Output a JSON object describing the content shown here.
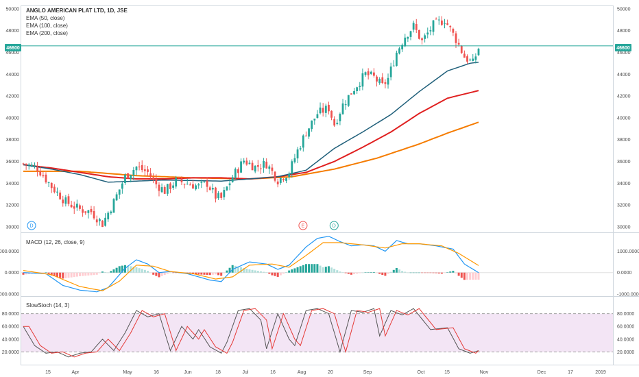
{
  "colors": {
    "up": "#26a69a",
    "down": "#ef5350",
    "ema50": "#1f5f7a",
    "ema100": "#e02020",
    "ema200": "#f57c00",
    "price_line": "#26a69a",
    "macd": "#2196f3",
    "signal": "#ff9800",
    "stoch_k": "#555555",
    "stoch_d": "#e53935",
    "stoch_band": "#f3e5f5"
  },
  "main": {
    "title": "ANGLO AMERICAN PLAT LTD, 1D, JSE",
    "indicators": [
      "EMA (50, close)",
      "EMA (100, close)",
      "EMA (200, close)"
    ],
    "y_ticks": [
      "50000",
      "48000",
      "46000",
      "44000",
      "42000",
      "40000",
      "38000",
      "36000",
      "34000",
      "32000",
      "30000"
    ],
    "last_price": "46600",
    "markers": [
      {
        "label": "D",
        "kind": "dividend",
        "color": "#2196f3",
        "at": 0
      },
      {
        "label": "E",
        "kind": "earnings",
        "color": "#ef5350",
        "at": 96
      },
      {
        "label": "D",
        "kind": "dividend",
        "color": "#26a69a",
        "at": 107
      }
    ]
  },
  "macd": {
    "title": "MACD (12, 26, close, 9)",
    "y_ticks": [
      "1000.0000",
      "0.0000",
      "-1000.0000"
    ]
  },
  "stoch": {
    "title": "SlowStoch (14, 3)",
    "y_ticks": [
      "80.0000",
      "60.0000",
      "40.0000",
      "20.0000"
    ]
  },
  "x_axis": {
    "ticks": [
      "15",
      "Apr",
      "May",
      "16",
      "Jun",
      "18",
      "Jul",
      "16",
      "Aug",
      "20",
      "Sep",
      "Oct",
      "15",
      "Nov",
      "Dec",
      "17",
      "2019"
    ]
  },
  "chart_data": {
    "type": "candlestick",
    "title": "ANGLO AMERICAN PLAT LTD, 1D, JSE",
    "ylim": [
      29500,
      50300
    ],
    "y_scale": "linear",
    "grid": false,
    "anchors": [
      [
        0,
        35800
      ],
      [
        5,
        35400
      ],
      [
        10,
        33700
      ],
      [
        15,
        32300
      ],
      [
        20,
        31600
      ],
      [
        24,
        31400
      ],
      [
        28,
        30300
      ],
      [
        32,
        32300
      ],
      [
        36,
        34600
      ],
      [
        40,
        35500
      ],
      [
        44,
        35000
      ],
      [
        47,
        33900
      ],
      [
        50,
        33300
      ],
      [
        54,
        34200
      ],
      [
        58,
        34000
      ],
      [
        62,
        33700
      ],
      [
        65,
        34000
      ],
      [
        68,
        32800
      ],
      [
        70,
        32600
      ],
      [
        74,
        34600
      ],
      [
        78,
        36100
      ],
      [
        82,
        35500
      ],
      [
        86,
        35800
      ],
      [
        90,
        34300
      ],
      [
        94,
        35000
      ],
      [
        97,
        37000
      ],
      [
        100,
        38700
      ],
      [
        104,
        40400
      ],
      [
        108,
        40900
      ],
      [
        110,
        39400
      ],
      [
        113,
        41200
      ],
      [
        117,
        42700
      ],
      [
        121,
        44000
      ],
      [
        124,
        43700
      ],
      [
        127,
        42900
      ],
      [
        129,
        43600
      ],
      [
        132,
        46000
      ],
      [
        135,
        47500
      ],
      [
        138,
        48400
      ],
      [
        141,
        47000
      ],
      [
        145,
        48500
      ],
      [
        149,
        49000
      ],
      [
        153,
        47200
      ],
      [
        156,
        45600
      ],
      [
        159,
        45000
      ],
      [
        161,
        46400
      ]
    ],
    "ema50_anchors": [
      [
        0,
        35700
      ],
      [
        10,
        35300
      ],
      [
        20,
        34800
      ],
      [
        30,
        34100
      ],
      [
        40,
        34200
      ],
      [
        50,
        34300
      ],
      [
        60,
        34250
      ],
      [
        70,
        34200
      ],
      [
        80,
        34400
      ],
      [
        90,
        34600
      ],
      [
        100,
        35200
      ],
      [
        110,
        37200
      ],
      [
        120,
        38700
      ],
      [
        130,
        40300
      ],
      [
        140,
        42400
      ],
      [
        150,
        44300
      ],
      [
        158,
        45000
      ],
      [
        161,
        45100
      ]
    ],
    "ema100_anchors": [
      [
        0,
        35700
      ],
      [
        10,
        35400
      ],
      [
        20,
        35000
      ],
      [
        30,
        34600
      ],
      [
        40,
        34400
      ],
      [
        50,
        34400
      ],
      [
        60,
        34500
      ],
      [
        70,
        34500
      ],
      [
        80,
        34400
      ],
      [
        90,
        34600
      ],
      [
        100,
        35000
      ],
      [
        110,
        36000
      ],
      [
        120,
        37300
      ],
      [
        130,
        38700
      ],
      [
        140,
        40400
      ],
      [
        150,
        41800
      ],
      [
        161,
        42500
      ]
    ],
    "ema200_anchors": [
      [
        0,
        35100
      ],
      [
        20,
        35100
      ],
      [
        40,
        34700
      ],
      [
        60,
        34500
      ],
      [
        80,
        34400
      ],
      [
        95,
        34600
      ],
      [
        110,
        35300
      ],
      [
        125,
        36300
      ],
      [
        140,
        37600
      ],
      [
        150,
        38600
      ],
      [
        161,
        39600
      ]
    ],
    "macd": {
      "ylim": [
        -1100,
        1850
      ],
      "macd_anchors": [
        [
          0,
          0
        ],
        [
          8,
          -50
        ],
        [
          14,
          -600
        ],
        [
          20,
          -820
        ],
        [
          26,
          -900
        ],
        [
          30,
          -700
        ],
        [
          36,
          200
        ],
        [
          40,
          600
        ],
        [
          44,
          400
        ],
        [
          48,
          0
        ],
        [
          52,
          50
        ],
        [
          58,
          -50
        ],
        [
          62,
          -200
        ],
        [
          66,
          -350
        ],
        [
          70,
          -420
        ],
        [
          74,
          150
        ],
        [
          80,
          500
        ],
        [
          86,
          400
        ],
        [
          90,
          150
        ],
        [
          94,
          350
        ],
        [
          100,
          1200
        ],
        [
          104,
          1600
        ],
        [
          108,
          1700
        ],
        [
          112,
          1450
        ],
        [
          116,
          1250
        ],
        [
          120,
          1300
        ],
        [
          124,
          1250
        ],
        [
          128,
          1000
        ],
        [
          132,
          1500
        ],
        [
          136,
          1350
        ],
        [
          140,
          1350
        ],
        [
          146,
          1250
        ],
        [
          152,
          1100
        ],
        [
          156,
          400
        ],
        [
          161,
          0
        ]
      ],
      "signal_anchors": [
        [
          0,
          100
        ],
        [
          10,
          -100
        ],
        [
          20,
          -650
        ],
        [
          28,
          -850
        ],
        [
          34,
          -400
        ],
        [
          40,
          350
        ],
        [
          46,
          300
        ],
        [
          52,
          50
        ],
        [
          60,
          -50
        ],
        [
          68,
          -300
        ],
        [
          74,
          -200
        ],
        [
          80,
          350
        ],
        [
          88,
          400
        ],
        [
          94,
          250
        ],
        [
          100,
          800
        ],
        [
          106,
          1400
        ],
        [
          112,
          1400
        ],
        [
          120,
          1300
        ],
        [
          128,
          1150
        ],
        [
          134,
          1350
        ],
        [
          140,
          1350
        ],
        [
          148,
          1250
        ],
        [
          154,
          900
        ],
        [
          161,
          330
        ]
      ]
    },
    "stoch": {
      "ylim": [
        0,
        100
      ],
      "k_anchors": [
        [
          0,
          60
        ],
        [
          4,
          30
        ],
        [
          8,
          18
        ],
        [
          12,
          20
        ],
        [
          16,
          12
        ],
        [
          20,
          18
        ],
        [
          24,
          20
        ],
        [
          28,
          40
        ],
        [
          32,
          22
        ],
        [
          36,
          50
        ],
        [
          40,
          85
        ],
        [
          44,
          75
        ],
        [
          48,
          80
        ],
        [
          52,
          22
        ],
        [
          56,
          60
        ],
        [
          60,
          40
        ],
        [
          62,
          55
        ],
        [
          66,
          28
        ],
        [
          70,
          18
        ],
        [
          72,
          35
        ],
        [
          76,
          85
        ],
        [
          80,
          88
        ],
        [
          84,
          70
        ],
        [
          86,
          25
        ],
        [
          90,
          80
        ],
        [
          94,
          40
        ],
        [
          96,
          30
        ],
        [
          100,
          85
        ],
        [
          104,
          88
        ],
        [
          108,
          80
        ],
        [
          112,
          20
        ],
        [
          116,
          85
        ],
        [
          120,
          82
        ],
        [
          124,
          88
        ],
        [
          126,
          45
        ],
        [
          130,
          85
        ],
        [
          134,
          78
        ],
        [
          138,
          88
        ],
        [
          144,
          55
        ],
        [
          150,
          58
        ],
        [
          154,
          25
        ],
        [
          158,
          18
        ],
        [
          161,
          22
        ]
      ]
    }
  }
}
